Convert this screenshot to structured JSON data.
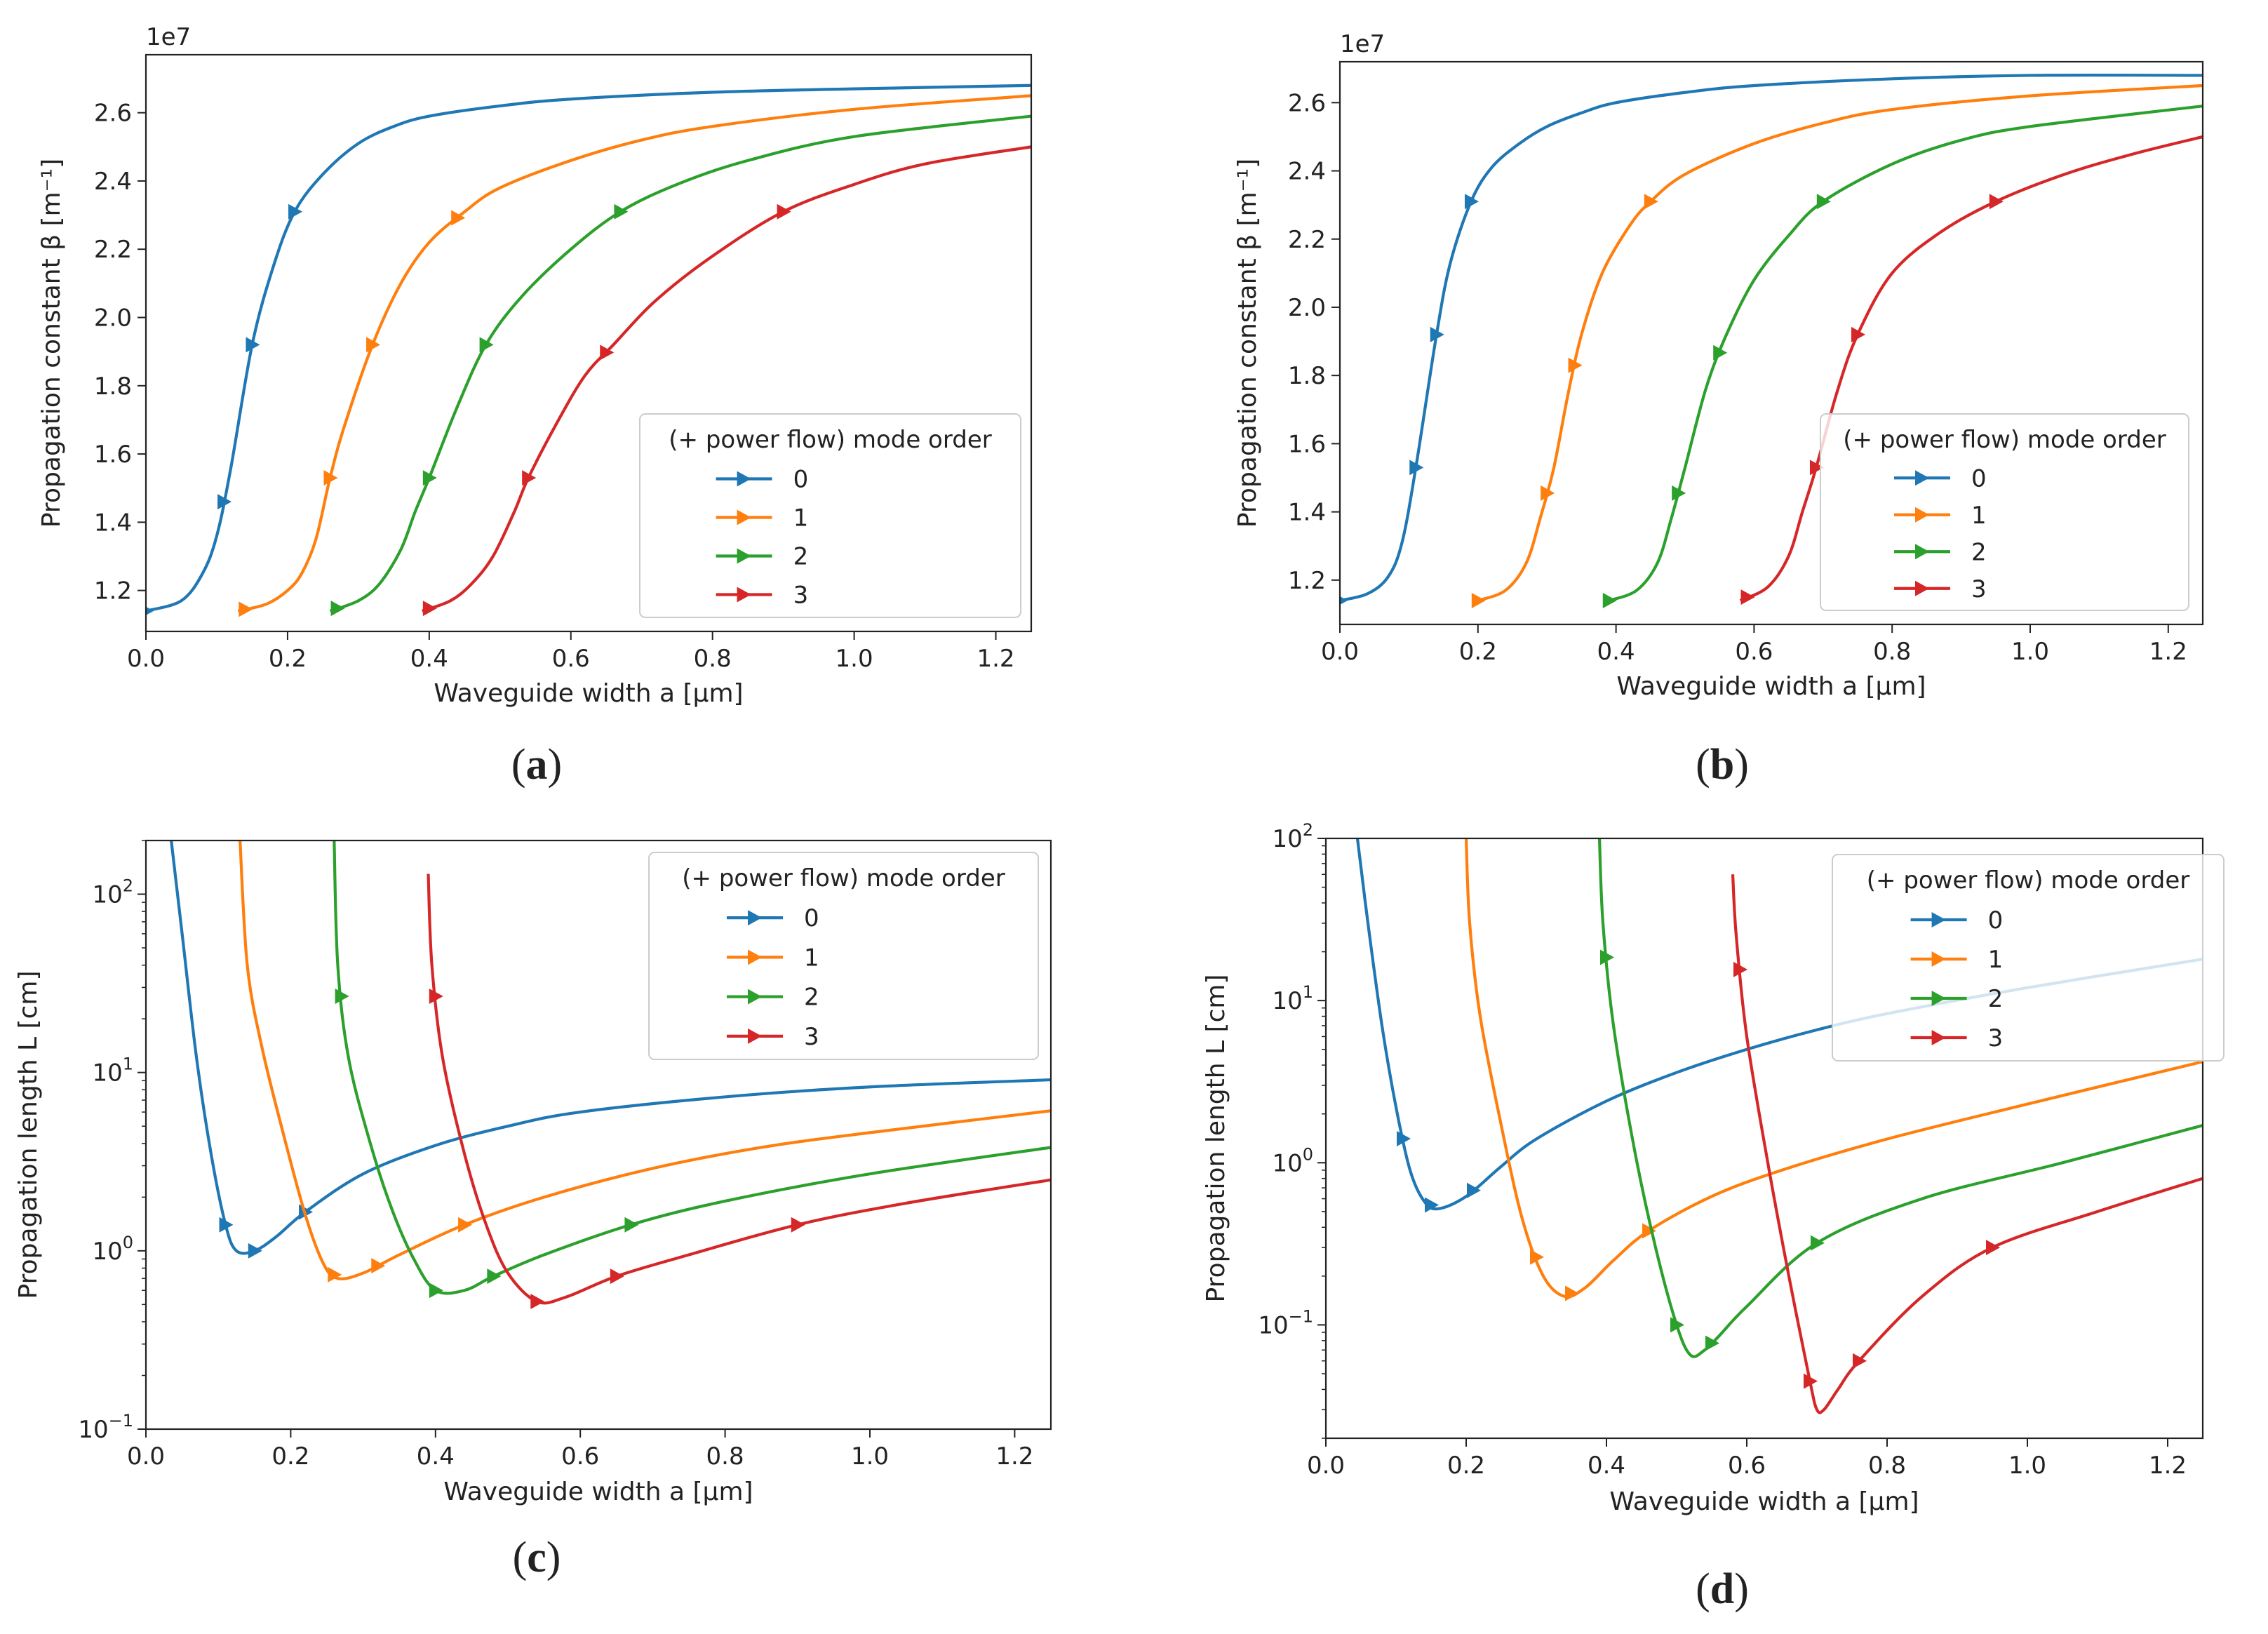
{
  "colors": {
    "mode0": "#1f77b4",
    "mode1": "#ff7f0e",
    "mode2": "#2ca02c",
    "mode3": "#d62728"
  },
  "chart_data": [
    {
      "type": "line",
      "panel_label": "(a)",
      "panel_label_letter": "a",
      "xlabel": "Waveguide width a [μm]",
      "ylabel": "Propagation constant β [m⁻¹]",
      "y_offset_label": "1e7",
      "xlim": [
        0.0,
        1.25
      ],
      "ylim": [
        1.08,
        2.77
      ],
      "y_scale": "linear",
      "x_ticks": [
        "0.0",
        "0.2",
        "0.4",
        "0.6",
        "0.8",
        "1.0",
        "1.2"
      ],
      "y_ticks": [
        "1.2",
        "1.4",
        "1.6",
        "1.8",
        "2.0",
        "2.2",
        "2.4",
        "2.6"
      ],
      "grid": false,
      "legend": {
        "title": "(+ power flow) mode order",
        "position": "lower-right",
        "entries": [
          "0",
          "1",
          "2",
          "3"
        ]
      },
      "series": [
        {
          "name": "0",
          "x": [
            0.0,
            0.05,
            0.08,
            0.1,
            0.12,
            0.15,
            0.18,
            0.21,
            0.25,
            0.3,
            0.35,
            0.4,
            0.5,
            0.6,
            0.8,
            1.0,
            1.25
          ],
          "y": [
            1.14,
            1.17,
            1.25,
            1.36,
            1.56,
            1.92,
            2.15,
            2.31,
            2.42,
            2.51,
            2.56,
            2.59,
            2.62,
            2.64,
            2.66,
            2.67,
            2.68
          ],
          "arrows_x": [
            0.0,
            0.11,
            0.15,
            0.21
          ]
        },
        {
          "name": "1",
          "x": [
            0.13,
            0.17,
            0.2,
            0.22,
            0.24,
            0.26,
            0.28,
            0.32,
            0.36,
            0.4,
            0.45,
            0.5,
            0.6,
            0.7,
            0.8,
            1.0,
            1.25
          ],
          "y": [
            1.14,
            1.16,
            1.2,
            1.25,
            1.35,
            1.53,
            1.68,
            1.92,
            2.1,
            2.22,
            2.31,
            2.38,
            2.46,
            2.52,
            2.56,
            2.61,
            2.65
          ],
          "arrows_x": [
            0.14,
            0.26,
            0.32,
            0.44
          ]
        },
        {
          "name": "2",
          "x": [
            0.26,
            0.3,
            0.33,
            0.36,
            0.38,
            0.4,
            0.44,
            0.48,
            0.53,
            0.6,
            0.67,
            0.75,
            0.85,
            1.0,
            1.25
          ],
          "y": [
            1.14,
            1.17,
            1.22,
            1.32,
            1.43,
            1.53,
            1.74,
            1.92,
            2.06,
            2.2,
            2.31,
            2.39,
            2.46,
            2.53,
            2.59
          ],
          "arrows_x": [
            0.27,
            0.4,
            0.48,
            0.67
          ]
        },
        {
          "name": "3",
          "x": [
            0.39,
            0.43,
            0.46,
            0.49,
            0.52,
            0.54,
            0.58,
            0.62,
            0.66,
            0.72,
            0.8,
            0.9,
            1.0,
            1.1,
            1.25
          ],
          "y": [
            1.14,
            1.17,
            1.22,
            1.3,
            1.43,
            1.53,
            1.69,
            1.83,
            1.92,
            2.05,
            2.18,
            2.31,
            2.39,
            2.45,
            2.5
          ],
          "arrows_x": [
            0.4,
            0.54,
            0.65,
            0.9
          ]
        }
      ]
    },
    {
      "type": "line",
      "panel_label": "(b)",
      "panel_label_letter": "b",
      "xlabel": "Waveguide width a [μm]",
      "ylabel": "Propagation constant β [m⁻¹]",
      "y_offset_label": "1e7",
      "xlim": [
        0.0,
        1.25
      ],
      "ylim": [
        1.07,
        2.72
      ],
      "y_scale": "linear",
      "x_ticks": [
        "0.0",
        "0.2",
        "0.4",
        "0.6",
        "0.8",
        "1.0",
        "1.2"
      ],
      "y_ticks": [
        "1.2",
        "1.4",
        "1.6",
        "1.8",
        "2.0",
        "2.2",
        "2.4",
        "2.6"
      ],
      "grid": false,
      "legend": {
        "title": "(+ power flow) mode order",
        "position": "lower-right",
        "entries": [
          "0",
          "1",
          "2",
          "3"
        ]
      },
      "series": [
        {
          "name": "0",
          "x": [
            0.0,
            0.04,
            0.07,
            0.09,
            0.11,
            0.14,
            0.16,
            0.19,
            0.22,
            0.26,
            0.3,
            0.35,
            0.4,
            0.5,
            0.6,
            0.8,
            1.0,
            1.25
          ],
          "y": [
            1.14,
            1.16,
            1.21,
            1.31,
            1.53,
            1.92,
            2.13,
            2.31,
            2.41,
            2.48,
            2.53,
            2.57,
            2.6,
            2.63,
            2.65,
            2.67,
            2.68,
            2.68
          ],
          "arrows_x": [
            0.0,
            0.11,
            0.14,
            0.19
          ]
        },
        {
          "name": "1",
          "x": [
            0.2,
            0.24,
            0.27,
            0.29,
            0.31,
            0.33,
            0.35,
            0.38,
            0.42,
            0.45,
            0.5,
            0.6,
            0.7,
            0.8,
            1.0,
            1.25
          ],
          "y": [
            1.14,
            1.17,
            1.25,
            1.38,
            1.53,
            1.74,
            1.92,
            2.1,
            2.24,
            2.31,
            2.39,
            2.48,
            2.54,
            2.58,
            2.62,
            2.65
          ],
          "arrows_x": [
            0.2,
            0.3,
            0.34,
            0.45
          ]
        },
        {
          "name": "2",
          "x": [
            0.39,
            0.43,
            0.46,
            0.48,
            0.5,
            0.53,
            0.56,
            0.6,
            0.65,
            0.7,
            0.8,
            0.9,
            1.0,
            1.25
          ],
          "y": [
            1.14,
            1.17,
            1.25,
            1.38,
            1.53,
            1.76,
            1.92,
            2.08,
            2.21,
            2.31,
            2.42,
            2.49,
            2.53,
            2.59
          ],
          "arrows_x": [
            0.39,
            0.49,
            0.55,
            0.7
          ]
        },
        {
          "name": "3",
          "x": [
            0.58,
            0.62,
            0.65,
            0.67,
            0.69,
            0.72,
            0.75,
            0.8,
            0.87,
            0.95,
            1.05,
            1.15,
            1.25
          ],
          "y": [
            1.14,
            1.18,
            1.27,
            1.4,
            1.53,
            1.75,
            1.92,
            2.1,
            2.22,
            2.31,
            2.39,
            2.45,
            2.5
          ],
          "arrows_x": [
            0.59,
            0.69,
            0.75,
            0.95
          ]
        }
      ]
    },
    {
      "type": "line",
      "panel_label": "(c)",
      "panel_label_letter": "c",
      "xlabel": "Waveguide width a [μm]",
      "ylabel": "Propagation length L [cm]",
      "xlim": [
        0.0,
        1.25
      ],
      "ylim": [
        0.1,
        200
      ],
      "y_scale": "log",
      "x_ticks": [
        "0.0",
        "0.2",
        "0.4",
        "0.6",
        "0.8",
        "1.0",
        "1.2"
      ],
      "y_ticks": [
        {
          "value": 0.1,
          "base": "10",
          "exp": "−1"
        },
        {
          "value": 1,
          "base": "10",
          "exp": "0"
        },
        {
          "value": 10,
          "base": "10",
          "exp": "1"
        },
        {
          "value": 100,
          "base": "10",
          "exp": "2"
        }
      ],
      "grid": false,
      "legend": {
        "title": "(+ power flow) mode order",
        "position": "upper-right",
        "entries": [
          "0",
          "1",
          "2",
          "3"
        ]
      },
      "series": [
        {
          "name": "0",
          "x": [
            0.035,
            0.05,
            0.07,
            0.09,
            0.11,
            0.125,
            0.15,
            0.18,
            0.22,
            0.3,
            0.4,
            0.5,
            0.6,
            0.8,
            1.0,
            1.25
          ],
          "y": [
            200,
            60,
            12,
            3.5,
            1.4,
            1.0,
            1.0,
            1.2,
            1.65,
            2.7,
            3.9,
            5.0,
            6.0,
            7.3,
            8.3,
            9.1
          ],
          "arrows_x": [
            0.11,
            0.15,
            0.22
          ]
        },
        {
          "name": "1",
          "x": [
            0.13,
            0.14,
            0.16,
            0.19,
            0.22,
            0.245,
            0.265,
            0.3,
            0.35,
            0.44,
            0.55,
            0.7,
            0.85,
            1.0,
            1.25
          ],
          "y": [
            200,
            40,
            14,
            4.5,
            1.6,
            0.85,
            0.7,
            0.75,
            0.95,
            1.4,
            2.0,
            2.9,
            3.8,
            4.6,
            6.1
          ],
          "arrows_x": [
            0.26,
            0.32,
            0.44
          ]
        },
        {
          "name": "2",
          "x": [
            0.26,
            0.265,
            0.28,
            0.31,
            0.34,
            0.37,
            0.4,
            0.44,
            0.48,
            0.55,
            0.67,
            0.8,
            1.0,
            1.25
          ],
          "y": [
            200,
            40,
            12,
            4.0,
            1.7,
            0.9,
            0.6,
            0.6,
            0.72,
            0.95,
            1.4,
            1.9,
            2.7,
            3.8
          ],
          "arrows_x": [
            0.27,
            0.4,
            0.48,
            0.67
          ]
        },
        {
          "name": "3",
          "x": [
            0.39,
            0.395,
            0.41,
            0.44,
            0.47,
            0.5,
            0.54,
            0.58,
            0.65,
            0.75,
            0.9,
            1.05,
            1.25
          ],
          "y": [
            130,
            40,
            12,
            3.5,
            1.4,
            0.75,
            0.52,
            0.55,
            0.72,
            0.95,
            1.4,
            1.85,
            2.5
          ],
          "arrows_x": [
            0.4,
            0.54,
            0.65,
            0.9
          ]
        }
      ]
    },
    {
      "type": "line",
      "panel_label": "(d)",
      "panel_label_letter": "d",
      "xlabel": "Waveguide width a [μm]",
      "ylabel": "Propagation length L [cm]",
      "xlim": [
        0.0,
        1.25
      ],
      "ylim": [
        0.02,
        100
      ],
      "y_scale": "log",
      "x_ticks": [
        "0.0",
        "0.2",
        "0.4",
        "0.6",
        "0.8",
        "1.0",
        "1.2"
      ],
      "y_ticks": [
        {
          "value": 0.1,
          "base": "10",
          "exp": "−1"
        },
        {
          "value": 1,
          "base": "10",
          "exp": "0"
        },
        {
          "value": 10,
          "base": "10",
          "exp": "1"
        },
        {
          "value": 100,
          "base": "10",
          "exp": "2"
        }
      ],
      "grid": false,
      "legend": {
        "title": "(+ power flow) mode order",
        "position": "upper-right",
        "entries": [
          "0",
          "1",
          "2",
          "3"
        ]
      },
      "series": [
        {
          "name": "0",
          "x": [
            0.045,
            0.06,
            0.08,
            0.1,
            0.12,
            0.14,
            0.16,
            0.2,
            0.25,
            0.3,
            0.4,
            0.5,
            0.6,
            0.7,
            0.8,
            1.0,
            1.25
          ],
          "y": [
            100,
            30,
            7,
            2.2,
            0.9,
            0.58,
            0.52,
            0.62,
            0.95,
            1.4,
            2.4,
            3.6,
            5.0,
            6.6,
            8.3,
            12.0,
            18.0
          ],
          "arrows_x": [
            0.11,
            0.15,
            0.21
          ]
        },
        {
          "name": "1",
          "x": [
            0.2,
            0.205,
            0.22,
            0.25,
            0.28,
            0.31,
            0.34,
            0.37,
            0.41,
            0.46,
            0.55,
            0.65,
            0.8,
            1.0,
            1.25
          ],
          "y": [
            100,
            30,
            8,
            1.7,
            0.45,
            0.2,
            0.15,
            0.17,
            0.25,
            0.38,
            0.62,
            0.9,
            1.4,
            2.3,
            4.2
          ],
          "arrows_x": [
            0.3,
            0.35,
            0.46
          ]
        },
        {
          "name": "2",
          "x": [
            0.39,
            0.395,
            0.41,
            0.44,
            0.47,
            0.5,
            0.52,
            0.54,
            0.56,
            0.6,
            0.7,
            0.85,
            1.05,
            1.25
          ],
          "y": [
            100,
            30,
            7,
            1.2,
            0.3,
            0.1,
            0.065,
            0.07,
            0.085,
            0.13,
            0.32,
            0.6,
            1.0,
            1.7
          ],
          "arrows_x": [
            0.4,
            0.5,
            0.55,
            0.7
          ]
        },
        {
          "name": "3",
          "x": [
            0.58,
            0.585,
            0.6,
            0.63,
            0.66,
            0.69,
            0.7,
            0.71,
            0.73,
            0.76,
            0.85,
            0.95,
            1.1,
            1.25
          ],
          "y": [
            60,
            25,
            6,
            1.0,
            0.2,
            0.045,
            0.03,
            0.03,
            0.04,
            0.06,
            0.15,
            0.3,
            0.5,
            0.8
          ],
          "arrows_x": [
            0.59,
            0.69,
            0.76,
            0.95
          ]
        }
      ]
    }
  ]
}
